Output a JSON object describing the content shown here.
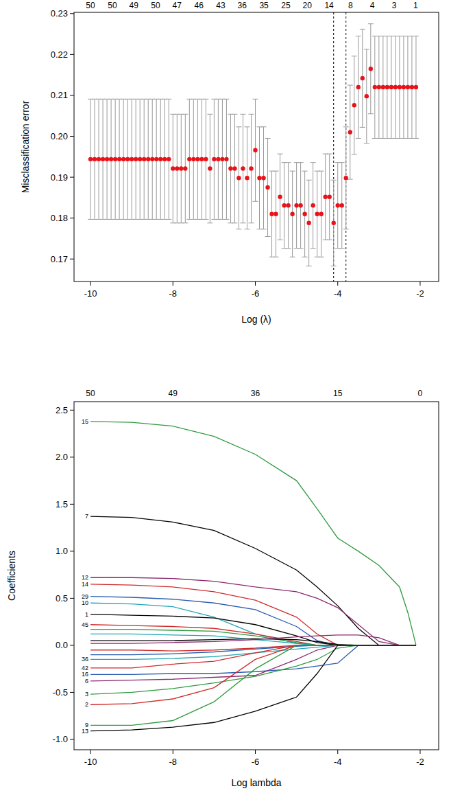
{
  "chart_data": [
    {
      "type": "scatter",
      "x_label": "Log (λ)",
      "y_label": "Misclassification error",
      "x": [
        -10,
        -9.9,
        -9.8,
        -9.7,
        -9.6,
        -9.5,
        -9.4,
        -9.3,
        -9.2,
        -9.1,
        -9,
        -8.9,
        -8.8,
        -8.7,
        -8.6,
        -8.5,
        -8.4,
        -8.3,
        -8.2,
        -8.1,
        -8,
        -7.9,
        -7.8,
        -7.7,
        -7.6,
        -7.5,
        -7.4,
        -7.3,
        -7.2,
        -7.1,
        -7,
        -6.9,
        -6.8,
        -6.7,
        -6.6,
        -6.5,
        -6.4,
        -6.3,
        -6.2,
        -6.1,
        -6,
        -5.9,
        -5.8,
        -5.7,
        -5.6,
        -5.5,
        -5.4,
        -5.3,
        -5.2,
        -5.1,
        -5,
        -4.9,
        -4.8,
        -4.7,
        -4.6,
        -4.5,
        -4.4,
        -4.3,
        -4.2,
        -4.1,
        -4,
        -3.9,
        -3.8,
        -3.7,
        -3.6,
        -3.5,
        -3.4,
        -3.3,
        -3.2,
        -3.1,
        -3,
        -2.9,
        -2.8,
        -2.7,
        -2.6,
        -2.5,
        -2.4,
        -2.3,
        -2.2,
        -2.1
      ],
      "values": [
        0.1944,
        0.1944,
        0.1944,
        0.1944,
        0.1944,
        0.1944,
        0.1944,
        0.1944,
        0.1944,
        0.1944,
        0.1944,
        0.1944,
        0.1944,
        0.1944,
        0.1944,
        0.1944,
        0.1944,
        0.1944,
        0.1944,
        0.1944,
        0.1921,
        0.1921,
        0.1921,
        0.1921,
        0.1944,
        0.1944,
        0.1944,
        0.1944,
        0.1944,
        0.1921,
        0.1944,
        0.1944,
        0.1944,
        0.1944,
        0.1921,
        0.1921,
        0.1898,
        0.1921,
        0.1898,
        0.1921,
        0.1966,
        0.1898,
        0.1898,
        0.1875,
        0.181,
        0.181,
        0.1852,
        0.1831,
        0.1831,
        0.181,
        0.1831,
        0.1831,
        0.181,
        0.1788,
        0.1831,
        0.181,
        0.181,
        0.1852,
        0.1852,
        0.1788,
        0.1831,
        0.1831,
        0.1898,
        0.201,
        0.2076,
        0.212,
        0.2142,
        0.2098,
        0.2165,
        0.212,
        0.212,
        0.212,
        0.212,
        0.212,
        0.212,
        0.212,
        0.212,
        0.212,
        0.212,
        0.212
      ],
      "errors": [
        0.0147,
        0.0147,
        0.0147,
        0.0147,
        0.0147,
        0.0147,
        0.0147,
        0.0147,
        0.0147,
        0.0147,
        0.0147,
        0.0147,
        0.0147,
        0.0147,
        0.0147,
        0.0147,
        0.0147,
        0.0147,
        0.0147,
        0.0147,
        0.0133,
        0.0133,
        0.0133,
        0.0133,
        0.0147,
        0.0147,
        0.0147,
        0.0147,
        0.0147,
        0.0133,
        0.0147,
        0.0147,
        0.0147,
        0.0147,
        0.0133,
        0.0133,
        0.0125,
        0.0133,
        0.0125,
        0.0133,
        0.0125,
        0.0125,
        0.0125,
        0.012,
        0.0105,
        0.0105,
        0.0105,
        0.0105,
        0.0105,
        0.0105,
        0.0105,
        0.0105,
        0.0105,
        0.0105,
        0.0105,
        0.0105,
        0.0105,
        0.0105,
        0.0105,
        0.0105,
        0.0105,
        0.0105,
        0.0125,
        0.0115,
        0.012,
        0.0125,
        0.012,
        0.0115,
        0.011,
        0.0125,
        0.0125,
        0.0125,
        0.0125,
        0.0125,
        0.0125,
        0.0125,
        0.0125,
        0.0125,
        0.0125,
        0.0125
      ],
      "color": "#e8131a",
      "xlim": [
        -10.4,
        -1.55
      ],
      "xticks": [
        -10,
        -8,
        -6,
        -4,
        -2
      ],
      "ylim": [
        0.1645,
        0.2303
      ],
      "yticks": [
        0.17,
        0.18,
        0.19,
        {
          "value": 0.2,
          "label": "0.20"
        },
        0.21,
        0.22,
        0.23
      ],
      "x2ticks": [
        {
          "value": -10,
          "label": "50"
        },
        {
          "value": -9.47,
          "label": "50"
        },
        {
          "value": -8.95,
          "label": "49"
        },
        {
          "value": -8.42,
          "label": "50"
        },
        {
          "value": -7.9,
          "label": "47"
        },
        {
          "value": -7.37,
          "label": "46"
        },
        {
          "value": -6.84,
          "label": "43"
        },
        {
          "value": -6.32,
          "label": "36"
        },
        {
          "value": -5.79,
          "label": "35"
        },
        {
          "value": -5.26,
          "label": "25"
        },
        {
          "value": -4.74,
          "label": "20"
        },
        {
          "value": -4.21,
          "label": "14"
        },
        {
          "value": -3.69,
          "label": "8"
        },
        {
          "value": -3.16,
          "label": "4"
        },
        {
          "value": -2.63,
          "label": "3"
        },
        {
          "value": -2.11,
          "label": "1"
        }
      ],
      "reference_lines": [
        -4.1,
        -3.8
      ],
      "grid": false
    },
    {
      "type": "line",
      "x_label": "Log lambda",
      "y_label": "Coefficients",
      "x": [
        -10,
        -9,
        -8,
        -7,
        -6,
        -5,
        -4.5,
        -4,
        -3.5,
        -3,
        -2.5,
        -2.3,
        -2.1
      ],
      "xlim": [
        -10.4,
        -1.55
      ],
      "xticks": [
        -10,
        -8,
        -6,
        -4,
        -2
      ],
      "ylim": [
        -1.11,
        2.59
      ],
      "yticks": [
        {
          "value": -1,
          "label": "-1.0"
        },
        -0.5,
        {
          "value": 0,
          "label": "0.0"
        },
        0.5,
        {
          "value": 1,
          "label": "1.0"
        },
        1.5,
        {
          "value": 2,
          "label": "2.0"
        },
        2.5
      ],
      "x2ticks": [
        {
          "value": -10,
          "label": "50"
        },
        {
          "value": -8,
          "label": "49"
        },
        {
          "value": -6,
          "label": "36"
        },
        {
          "value": -4,
          "label": "15"
        },
        {
          "value": -2,
          "label": "0"
        }
      ],
      "grid": false,
      "series": [
        {
          "name": "15",
          "color": "#2e9a3e",
          "values": [
            2.38,
            2.37,
            2.33,
            2.22,
            2.03,
            1.75,
            1.45,
            1.14,
            1.0,
            0.85,
            0.62,
            0.35,
            0
          ]
        },
        {
          "name": "7",
          "color": "#000000",
          "values": [
            1.37,
            1.36,
            1.31,
            1.22,
            1.03,
            0.8,
            0.62,
            0.42,
            0.18,
            0,
            0,
            0,
            0
          ]
        },
        {
          "name": "12",
          "color": "#8b2a6e",
          "values": [
            0.72,
            0.72,
            0.71,
            0.68,
            0.62,
            0.57,
            0.5,
            0.4,
            0.22,
            0.04,
            0,
            0,
            0
          ]
        },
        {
          "name": "14",
          "color": "#d02b2b",
          "values": [
            0.65,
            0.64,
            0.62,
            0.57,
            0.48,
            0.3,
            0.12,
            0,
            0,
            0,
            0,
            0,
            0
          ]
        },
        {
          "name": "29",
          "color": "#2a5db0",
          "values": [
            0.52,
            0.51,
            0.49,
            0.45,
            0.38,
            0.2,
            0.05,
            0,
            0,
            0,
            0,
            0,
            0
          ]
        },
        {
          "name": "10",
          "color": "#1fa5b5",
          "values": [
            0.45,
            0.44,
            0.41,
            0.3,
            0.12,
            0.02,
            0,
            0,
            0,
            0,
            0,
            0,
            0
          ]
        },
        {
          "name": "1",
          "color": "#000000",
          "values": [
            0.33,
            0.32,
            0.31,
            0.29,
            0.22,
            0.1,
            0.03,
            0,
            0,
            0,
            0,
            0,
            0
          ]
        },
        {
          "name": "45",
          "color": "#d02b2b",
          "values": [
            0.22,
            0.21,
            0.2,
            0.18,
            0.12,
            0.04,
            0,
            0,
            0,
            0,
            0,
            0,
            0
          ]
        },
        {
          "color": "#2e9a3e",
          "values": [
            0.17,
            0.17,
            0.16,
            0.15,
            0.1,
            0.03,
            0,
            0,
            0,
            0,
            0,
            0,
            0
          ]
        },
        {
          "color": "#1fa5b5",
          "values": [
            0.12,
            0.12,
            0.11,
            0.1,
            0.06,
            0.02,
            0,
            0,
            0,
            0,
            0,
            0,
            0
          ]
        },
        {
          "color": "#000000",
          "values": [
            0.05,
            0.05,
            0.05,
            0.06,
            0.07,
            0.06,
            0.04,
            0.01,
            0,
            0,
            0,
            0,
            0
          ]
        },
        {
          "color": "#8b2a6e",
          "values": [
            0.02,
            0.02,
            0.03,
            0.04,
            0.06,
            0.09,
            0.1,
            0.11,
            0.11,
            0.08,
            0,
            0,
            0
          ]
        },
        {
          "color": "#d02b2b",
          "values": [
            -0.05,
            -0.05,
            -0.06,
            -0.05,
            -0.03,
            0,
            0,
            0,
            0,
            0,
            0,
            0,
            0
          ]
        },
        {
          "color": "#2a5db0",
          "values": [
            -0.1,
            -0.1,
            -0.09,
            -0.07,
            -0.04,
            -0.01,
            0,
            0,
            0,
            0,
            0,
            0,
            0
          ]
        },
        {
          "name": "36",
          "color": "#1fa5b5",
          "values": [
            -0.15,
            -0.15,
            -0.14,
            -0.12,
            -0.08,
            -0.04,
            -0.02,
            0,
            0,
            0,
            0,
            0,
            0
          ]
        },
        {
          "name": "42",
          "color": "#d02b2b",
          "values": [
            -0.24,
            -0.24,
            -0.2,
            -0.17,
            -0.08,
            0,
            0,
            0,
            0,
            0,
            0,
            0,
            0
          ]
        },
        {
          "name": "16",
          "color": "#2a5db0",
          "values": [
            -0.31,
            -0.31,
            -0.3,
            -0.3,
            -0.28,
            -0.25,
            -0.22,
            -0.19,
            0,
            0,
            0,
            0,
            0
          ]
        },
        {
          "name": "6",
          "color": "#8b2a6e",
          "values": [
            -0.38,
            -0.37,
            -0.36,
            -0.34,
            -0.32,
            -0.15,
            -0.05,
            0,
            0,
            0,
            0,
            0,
            0
          ]
        },
        {
          "name": "3",
          "color": "#2e9a3e",
          "values": [
            -0.52,
            -0.5,
            -0.46,
            -0.4,
            -0.33,
            -0.22,
            -0.15,
            -0.03,
            0,
            0,
            0,
            0,
            0
          ]
        },
        {
          "name": "2",
          "color": "#d02b2b",
          "values": [
            -0.63,
            -0.62,
            -0.57,
            -0.45,
            -0.15,
            0,
            0,
            0,
            0,
            0,
            0,
            0,
            0
          ]
        },
        {
          "name": "9",
          "color": "#2e9a3e",
          "values": [
            -0.85,
            -0.85,
            -0.8,
            -0.6,
            -0.25,
            0,
            0,
            0,
            0,
            0,
            0,
            0,
            0
          ]
        },
        {
          "name": "13",
          "color": "#000000",
          "values": [
            -0.91,
            -0.9,
            -0.87,
            -0.82,
            -0.7,
            -0.55,
            -0.3,
            0,
            0,
            0,
            0,
            0,
            0
          ]
        }
      ]
    }
  ]
}
